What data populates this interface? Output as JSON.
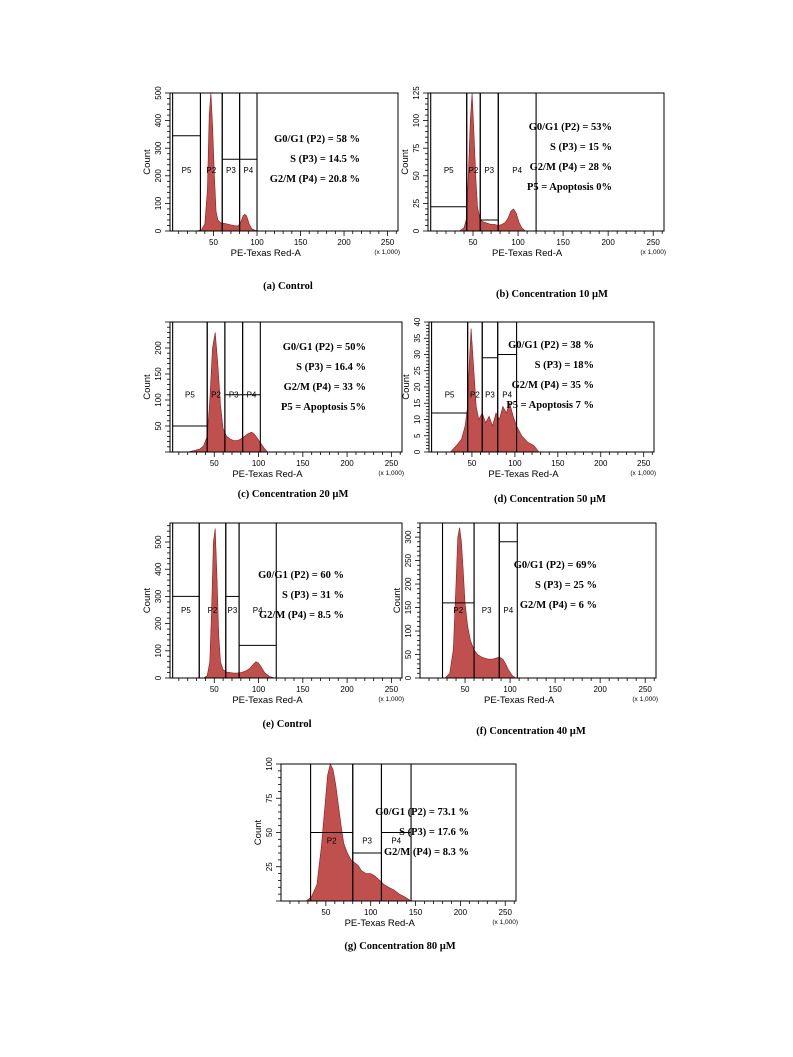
{
  "figure": {
    "colors": {
      "histogram_fill": "#c0504d",
      "histogram_edge": "#8b1a1a",
      "frame": "#000000"
    },
    "chart_data": [
      {
        "type": "area",
        "caption": "(a) Control",
        "xlabel": "PE-Texas Red-A",
        "ylabel": "Count",
        "x_multiplier": "(x 1,000)",
        "xlim": [
          0,
          262
        ],
        "ylim": [
          0,
          500
        ],
        "xticks": [
          "50",
          "100",
          "150",
          "200",
          "250"
        ],
        "yticks": [
          "0",
          "100",
          "200",
          "300",
          "400",
          "500"
        ],
        "gates": [
          {
            "name": "P5",
            "x1": 3,
            "x2": 35,
            "level": 345
          },
          {
            "name": "P2",
            "x1": 35,
            "x2": 60
          },
          {
            "name": "P3",
            "x1": 60,
            "x2": 80,
            "level": 260
          },
          {
            "name": "P4",
            "x1": 80,
            "x2": 100,
            "level": 260
          }
        ],
        "stats": [
          "G0/G1 (P2) = 58 %",
          "S (P3) = 14.5 %",
          "G2/M (P4) = 20.8 %"
        ],
        "histogram": {
          "x": [
            30,
            36,
            40,
            43,
            45,
            47,
            49,
            51,
            53,
            55,
            58,
            62,
            66,
            70,
            74,
            78,
            81,
            84,
            86,
            88,
            91,
            94,
            98,
            102
          ],
          "y": [
            0,
            4,
            25,
            150,
            420,
            500,
            380,
            200,
            70,
            40,
            30,
            28,
            25,
            22,
            20,
            18,
            30,
            55,
            60,
            55,
            25,
            8,
            2,
            0
          ]
        }
      },
      {
        "type": "area",
        "caption": "(b) Concentration 10 µM",
        "xlabel": "PE-Texas Red-A",
        "ylabel": "Count",
        "x_multiplier": "(x 1,000)",
        "xlim": [
          0,
          262
        ],
        "ylim": [
          0,
          125
        ],
        "xticks": [
          "50",
          "100",
          "150",
          "200",
          "250"
        ],
        "yticks": [
          "0",
          "25",
          "50",
          "75",
          "100",
          "125"
        ],
        "gates": [
          {
            "name": "P5",
            "x1": 3,
            "x2": 43,
            "level": 22
          },
          {
            "name": "P2",
            "x1": 43,
            "x2": 58
          },
          {
            "name": "P3",
            "x1": 58,
            "x2": 78,
            "level": 10
          },
          {
            "name": "P4",
            "x1": 78,
            "x2": 120
          }
        ],
        "stats": [
          "G0/G1 (P2) = 53%",
          "S (P3) = 15 %",
          "G2/M (P4) = 28 %",
          "P5 = Apoptosis 0%"
        ],
        "histogram": {
          "x": [
            35,
            40,
            43,
            45,
            47,
            49,
            51,
            53,
            55,
            58,
            62,
            66,
            70,
            74,
            78,
            82,
            86,
            89,
            92,
            95,
            98,
            101,
            104,
            108
          ],
          "y": [
            0,
            3,
            12,
            55,
            100,
            125,
            90,
            50,
            22,
            10,
            8,
            7,
            6,
            6,
            5,
            6,
            8,
            12,
            18,
            20,
            16,
            8,
            3,
            0
          ]
        }
      },
      {
        "type": "area",
        "caption": "(c) Concentration 20 µM",
        "xlabel": "PE-Texas Red-A",
        "ylabel": "Count",
        "x_multiplier": "(x 1,000)",
        "xlim": [
          0,
          262
        ],
        "ylim": [
          0,
          250
        ],
        "xticks": [
          "50",
          "100",
          "150",
          "200",
          "250"
        ],
        "yticks": [
          "50",
          "100",
          "150",
          "200"
        ],
        "gates": [
          {
            "name": "P5",
            "x1": 3,
            "x2": 42,
            "level": 50
          },
          {
            "name": "P2",
            "x1": 42,
            "x2": 62
          },
          {
            "name": "P3",
            "x1": 62,
            "x2": 82,
            "level": 110
          },
          {
            "name": "P4",
            "x1": 82,
            "x2": 102,
            "level": 110
          }
        ],
        "stats": [
          "G0/G1 (P2) = 50%",
          "S (P3) = 16.4 %",
          "G2/M (P4) = 33 %",
          "P5 = Apoptosis 5%"
        ],
        "histogram": {
          "x": [
            20,
            28,
            34,
            38,
            42,
            45,
            48,
            51,
            54,
            57,
            60,
            64,
            68,
            72,
            76,
            80,
            84,
            88,
            92,
            95,
            98,
            102,
            106,
            110
          ],
          "y": [
            0,
            3,
            6,
            12,
            30,
            100,
            200,
            230,
            170,
            90,
            45,
            30,
            25,
            22,
            22,
            25,
            30,
            35,
            38,
            35,
            28,
            18,
            8,
            0
          ]
        }
      },
      {
        "type": "area",
        "caption": "(d) Concentration 50 µM",
        "xlabel": "PE-Texas Red-A",
        "ylabel": "Count",
        "x_multiplier": "(x 1,000)",
        "xlim": [
          0,
          262
        ],
        "ylim": [
          0,
          40
        ],
        "xticks": [
          "50",
          "100",
          "150",
          "200",
          "250"
        ],
        "yticks": [
          "0",
          "5",
          "10",
          "15",
          "20",
          "25",
          "30",
          "35",
          "40"
        ],
        "gates": [
          {
            "name": "P5",
            "x1": 3,
            "x2": 45,
            "level": 12
          },
          {
            "name": "P2",
            "x1": 45,
            "x2": 62
          },
          {
            "name": "P3",
            "x1": 62,
            "x2": 80,
            "level": 29
          },
          {
            "name": "P4",
            "x1": 80,
            "x2": 102,
            "level": 30
          }
        ],
        "stats": [
          "G0/G1 (P2) = 38 %",
          "S (P3) = 18%",
          "G2/M (P4) = 35 %",
          "P5 = Apoptosis 7 %"
        ],
        "histogram": {
          "x": [
            25,
            32,
            38,
            42,
            45,
            47,
            49,
            51,
            53,
            55,
            58,
            62,
            66,
            70,
            74,
            78,
            82,
            86,
            90,
            94,
            98,
            102,
            108,
            115,
            122,
            128
          ],
          "y": [
            0,
            2,
            4,
            8,
            14,
            28,
            38,
            30,
            22,
            14,
            10,
            12,
            9,
            11,
            8,
            12,
            10,
            14,
            12,
            15,
            11,
            8,
            5,
            3,
            2,
            0
          ]
        }
      },
      {
        "type": "area",
        "caption": "(e) Control",
        "xlabel": "PE-Texas Red-A",
        "ylabel": "Count",
        "x_multiplier": "(x 1,000)",
        "xlim": [
          0,
          262
        ],
        "ylim": [
          0,
          570
        ],
        "xticks": [
          "50",
          "100",
          "150",
          "200",
          "250"
        ],
        "yticks": [
          "0",
          "100",
          "200",
          "300",
          "400",
          "500"
        ],
        "gates": [
          {
            "name": "P5",
            "x1": 3,
            "x2": 33,
            "level": 300
          },
          {
            "name": "P2",
            "x1": 33,
            "x2": 63
          },
          {
            "name": "P3",
            "x1": 63,
            "x2": 78,
            "level": 300
          },
          {
            "name": "P4",
            "x1": 78,
            "x2": 120,
            "level": 120
          }
        ],
        "stats": [
          "G0/G1 (P2) = 60 %",
          "S (P3) = 31 %",
          "G2/M (P4) = 8.5 %"
        ],
        "histogram": {
          "x": [
            38,
            42,
            45,
            47,
            49,
            51,
            53,
            55,
            57,
            60,
            64,
            68,
            72,
            76,
            80,
            85,
            90,
            94,
            97,
            100,
            103,
            107,
            112,
            118
          ],
          "y": [
            0,
            8,
            60,
            250,
            500,
            550,
            380,
            160,
            60,
            30,
            22,
            20,
            18,
            18,
            20,
            25,
            35,
            50,
            60,
            55,
            40,
            20,
            6,
            0
          ]
        }
      },
      {
        "type": "area",
        "caption": "(f) Concentration 40 µM",
        "xlabel": "PE-Texas Red-A",
        "ylabel": "Count",
        "x_multiplier": "(x 1,000)",
        "xlim": [
          0,
          262
        ],
        "ylim": [
          0,
          330
        ],
        "xticks": [
          "50",
          "100",
          "150",
          "200",
          "250"
        ],
        "yticks": [
          "0",
          "50",
          "100",
          "150",
          "200",
          "250",
          "300"
        ],
        "gates": [
          {
            "name": "P2",
            "x1": 25,
            "x2": 60,
            "level": 160
          },
          {
            "name": "P3",
            "x1": 60,
            "x2": 88
          },
          {
            "name": "P4",
            "x1": 88,
            "x2": 108,
            "level": 290
          }
        ],
        "stats": [
          "G0/G1 (P2) = 69%",
          "S (P3) = 25 %",
          "G2/M (P4) = 6 %"
        ],
        "histogram": {
          "x": [
            28,
            33,
            37,
            40,
            42,
            44,
            46,
            48,
            50,
            53,
            56,
            60,
            64,
            68,
            72,
            76,
            80,
            84,
            88,
            92,
            95,
            98,
            102,
            106
          ],
          "y": [
            0,
            10,
            60,
            200,
            300,
            320,
            290,
            230,
            160,
            110,
            80,
            60,
            50,
            45,
            42,
            40,
            40,
            42,
            45,
            40,
            30,
            18,
            6,
            0
          ]
        }
      },
      {
        "type": "area",
        "caption": "(g) Concentration 80 µM",
        "xlabel": "PE-Texas Red-A",
        "ylabel": "Count",
        "x_multiplier": "(x 1,000)",
        "xlim": [
          0,
          262
        ],
        "ylim": [
          0,
          100
        ],
        "xticks": [
          "50",
          "100",
          "150",
          "200",
          "250"
        ],
        "yticks": [
          "25",
          "50",
          "75",
          "100"
        ],
        "gates": [
          {
            "name": "P2",
            "x1": 33,
            "x2": 80,
            "level": 50
          },
          {
            "name": "P3",
            "x1": 80,
            "x2": 112,
            "level": 35
          },
          {
            "name": "P4",
            "x1": 112,
            "x2": 145,
            "level": 50
          }
        ],
        "stats": [
          "G0/G1 (P2) = 73.1 %",
          "S (P3) = 17.6 %",
          "G2/M (P4) = 8.3 %"
        ],
        "histogram": {
          "x": [
            28,
            34,
            40,
            45,
            49,
            52,
            55,
            58,
            61,
            64,
            67,
            70,
            74,
            78,
            82,
            86,
            90,
            95,
            100,
            105,
            110,
            115,
            120,
            126,
            132,
            138,
            145
          ],
          "y": [
            0,
            3,
            12,
            40,
            70,
            92,
            100,
            96,
            85,
            70,
            55,
            42,
            35,
            30,
            28,
            26,
            22,
            20,
            20,
            18,
            15,
            12,
            10,
            8,
            5,
            3,
            0
          ]
        }
      }
    ]
  }
}
